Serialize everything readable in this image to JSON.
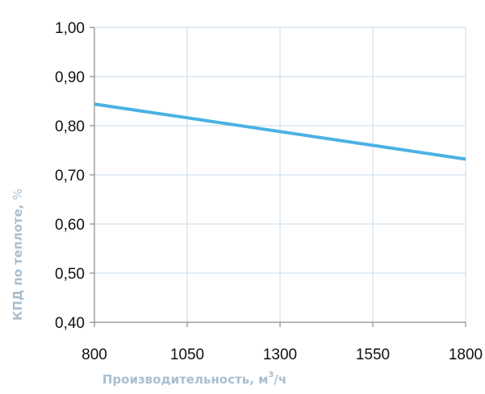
{
  "colors": {
    "series_line": "#4bb1e3",
    "grid": "#c8dbeb",
    "axis": "#8a8a8a",
    "axis_title": "#a9bfd0",
    "tick_text": "#111111"
  },
  "chart_data": {
    "type": "line",
    "xlabel": "Производительность, м³/ч",
    "xlabel_main": "Производительность",
    "xlabel_unit_base": "м",
    "xlabel_unit_sup": "3",
    "xlabel_unit_tail": "/ч",
    "ylabel": "КПД по теплоте, %",
    "ylabel_main": "КПД по теплоте",
    "ylabel_unit": "%",
    "xlim": [
      800,
      1800
    ],
    "ylim": [
      0.4,
      1.0
    ],
    "x_ticks": [
      800,
      1050,
      1300,
      1550,
      1800
    ],
    "x_tick_labels": [
      "800",
      "1050",
      "1300",
      "1550",
      "1800"
    ],
    "y_ticks": [
      0.4,
      0.5,
      0.6,
      0.7,
      0.8,
      0.9,
      1.0
    ],
    "y_tick_labels": [
      "0,40",
      "0,50",
      "0,60",
      "0,70",
      "0,80",
      "0,90",
      "1,00"
    ],
    "grid": true,
    "legend": "none",
    "series": [
      {
        "x": [
          800,
          1050,
          1300,
          1550,
          1800
        ],
        "y": [
          0.844,
          0.816,
          0.788,
          0.76,
          0.732
        ]
      }
    ]
  }
}
